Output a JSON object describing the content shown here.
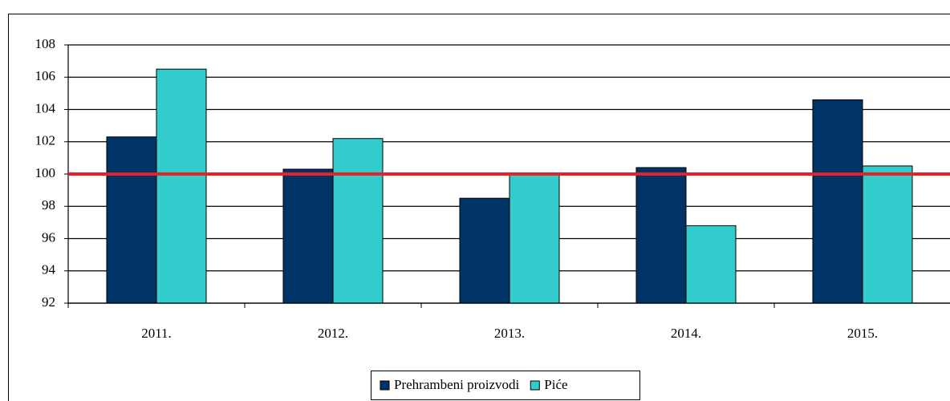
{
  "chart_data": {
    "type": "bar",
    "categories": [
      "2011.",
      "2012.",
      "2013.",
      "2014.",
      "2015."
    ],
    "series": [
      {
        "name": "Prehrambeni proizvodi",
        "color": "#003366",
        "values": [
          102.3,
          100.3,
          98.5,
          100.4,
          104.6
        ]
      },
      {
        "name": "Piće",
        "color": "#33cccc",
        "values": [
          106.5,
          102.2,
          100.0,
          96.8,
          100.5
        ]
      }
    ],
    "ylim": [
      92,
      108
    ],
    "yticks": [
      92,
      94,
      96,
      98,
      100,
      102,
      104,
      106,
      108
    ],
    "grid": true,
    "reference_line": {
      "value": 100,
      "color": "#e8202a"
    },
    "legend": "bottom"
  }
}
